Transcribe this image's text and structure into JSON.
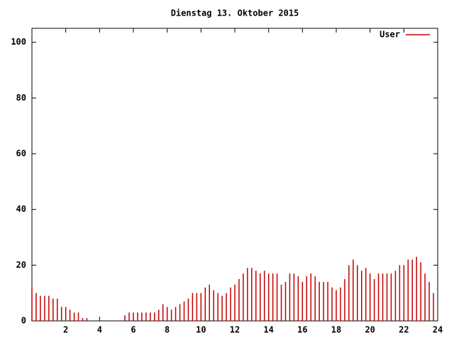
{
  "chart_data": {
    "type": "impulse",
    "title": "Dienstag 13. Oktober 2015",
    "x": [
      0,
      0.25,
      0.5,
      0.75,
      1,
      1.25,
      1.5,
      1.75,
      2,
      2.25,
      2.5,
      2.75,
      3,
      3.25,
      3.5,
      3.75,
      4,
      4.25,
      4.5,
      4.75,
      5,
      5.25,
      5.5,
      5.75,
      6,
      6.25,
      6.5,
      6.75,
      7,
      7.25,
      7.5,
      7.75,
      8,
      8.25,
      8.5,
      8.75,
      9,
      9.25,
      9.5,
      9.75,
      10,
      10.25,
      10.5,
      10.75,
      11,
      11.25,
      11.5,
      11.75,
      12,
      12.25,
      12.5,
      12.75,
      13,
      13.25,
      13.5,
      13.75,
      14,
      14.25,
      14.5,
      14.75,
      15,
      15.25,
      15.5,
      15.75,
      16,
      16.25,
      16.5,
      16.75,
      17,
      17.25,
      17.5,
      17.75,
      18,
      18.25,
      18.5,
      18.75,
      19,
      19.25,
      19.5,
      19.75,
      20,
      20.25,
      20.5,
      20.75,
      21,
      21.25,
      21.5,
      21.75,
      22,
      22.25,
      22.5,
      22.75,
      23,
      23.25,
      23.5,
      23.75
    ],
    "series": [
      {
        "name": "User",
        "color": "#c00000",
        "values": [
          12,
          10,
          9,
          9,
          9,
          8,
          8,
          5,
          5,
          4,
          3,
          3,
          1,
          1,
          0,
          0,
          0,
          0,
          0,
          0,
          0,
          0,
          2,
          3,
          3,
          3,
          3,
          3,
          3,
          3,
          4,
          6,
          5,
          4,
          5,
          6,
          7,
          8,
          10,
          10,
          10,
          12,
          13,
          11,
          10,
          9,
          10,
          12,
          13,
          15,
          17,
          19,
          19,
          18,
          17,
          18,
          17,
          17,
          17,
          13,
          14,
          17,
          17,
          16,
          14,
          16,
          17,
          16,
          14,
          14,
          14,
          12,
          11,
          12,
          15,
          20,
          22,
          20,
          18,
          19,
          17,
          15,
          17,
          17,
          17,
          17,
          18,
          20,
          20,
          22,
          22,
          23,
          21,
          17,
          14,
          10
        ]
      }
    ],
    "xlim": [
      0,
      24
    ],
    "xticks": [
      2,
      4,
      6,
      8,
      10,
      12,
      14,
      16,
      18,
      20,
      22,
      24
    ],
    "ylim": [
      0,
      105
    ],
    "yticks": [
      0,
      20,
      40,
      60,
      80,
      100
    ]
  }
}
